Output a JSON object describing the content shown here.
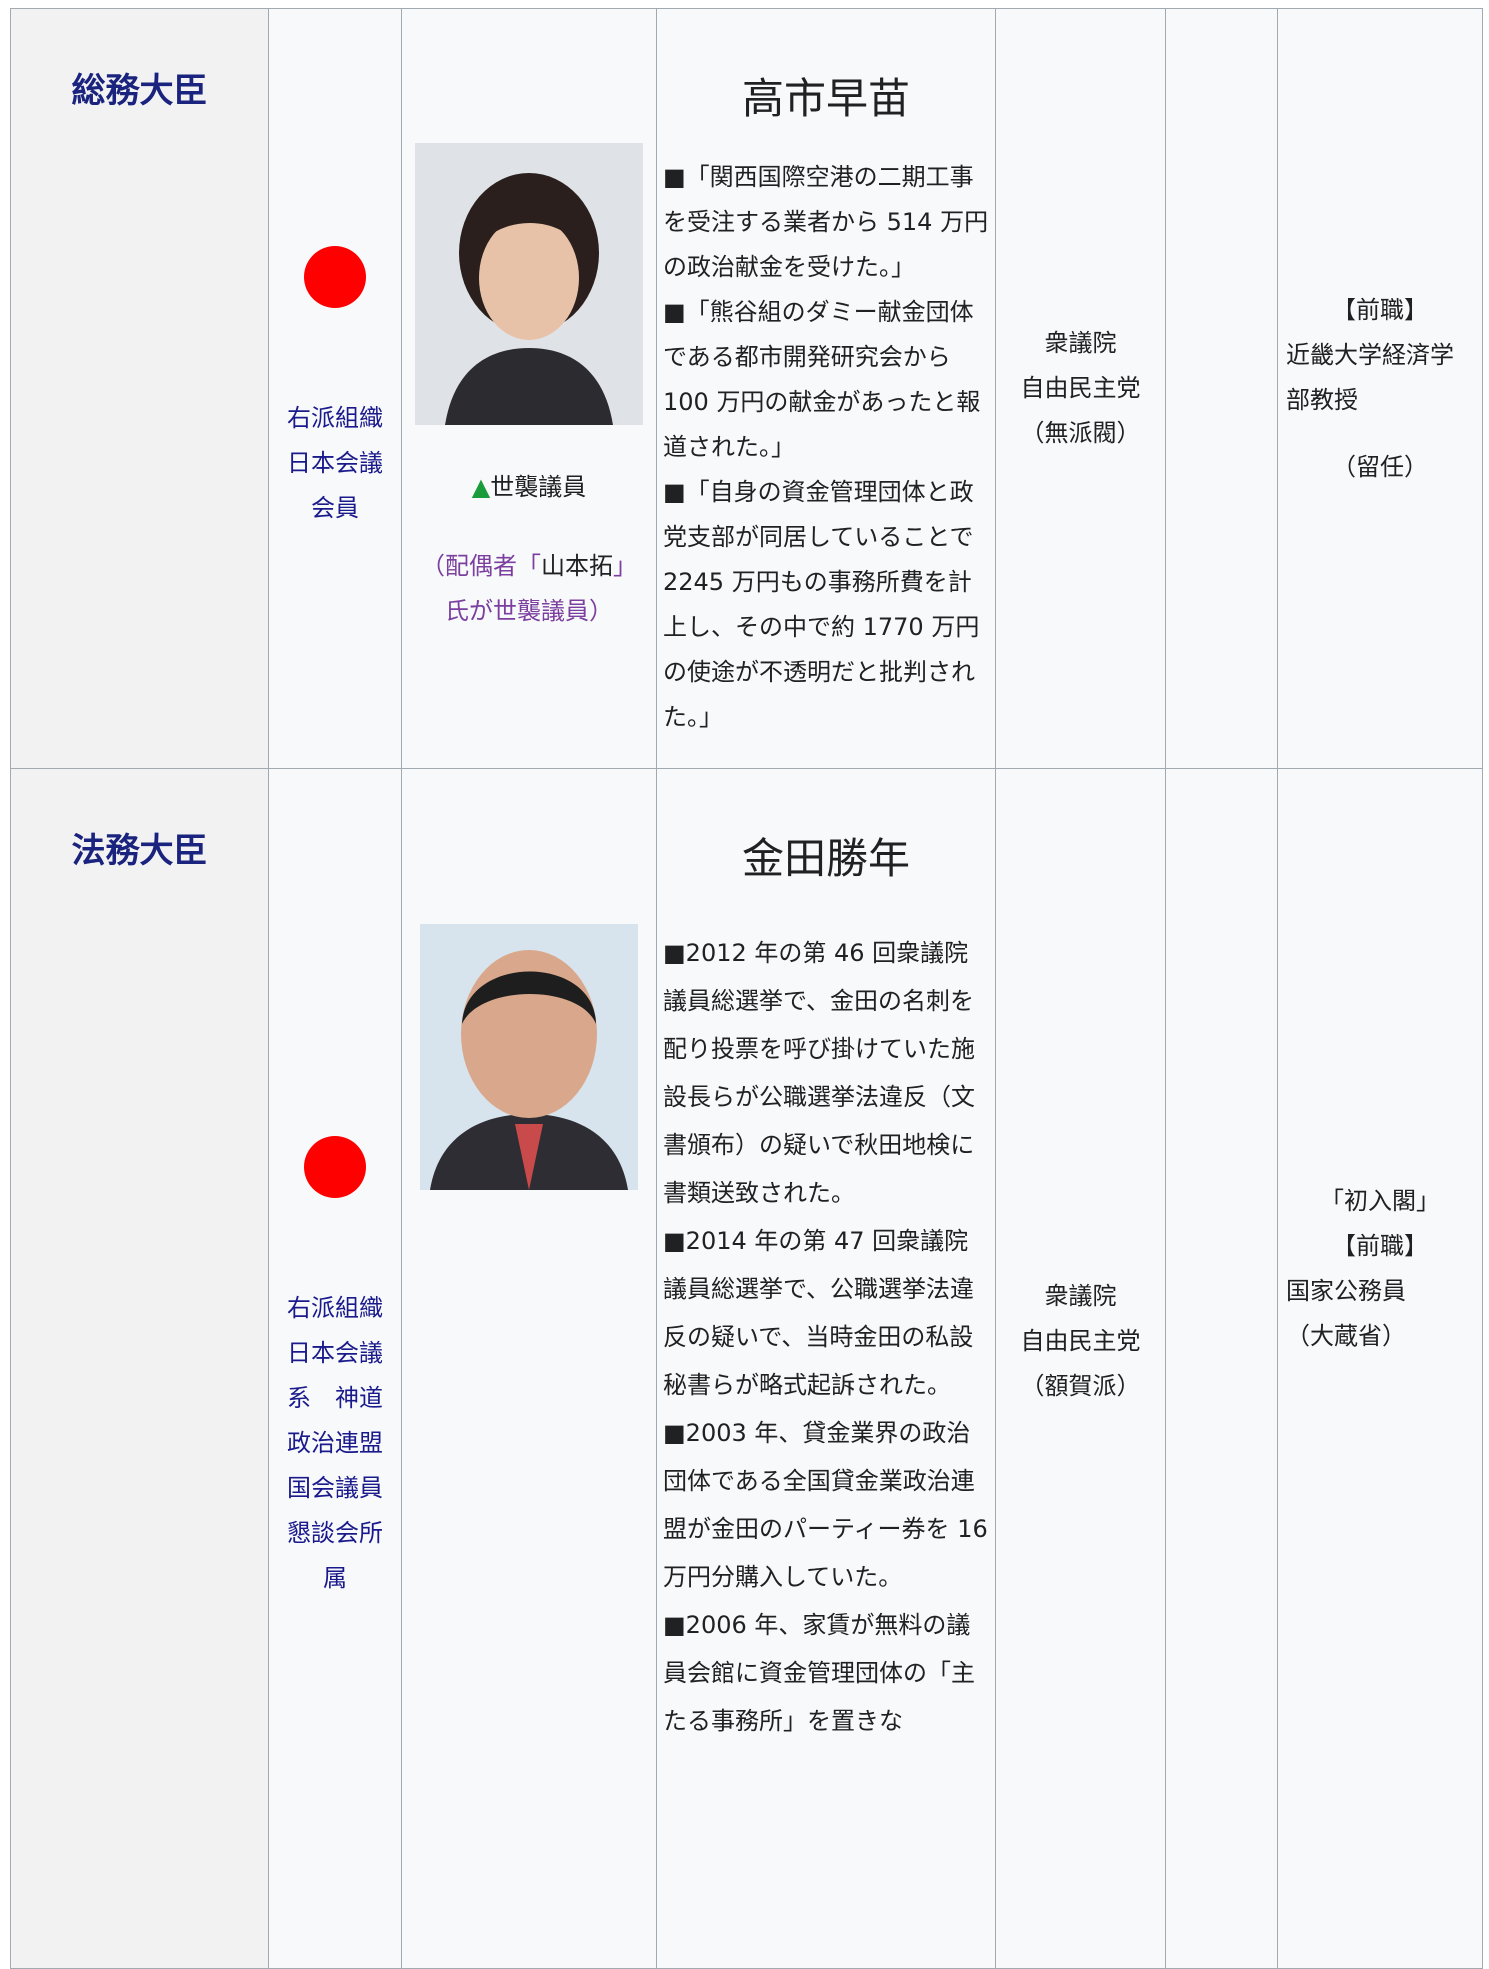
{
  "rows": [
    {
      "post": "総務大臣",
      "affiliation": [
        "右派組織",
        "日本会議",
        "会員"
      ],
      "hereditary": {
        "mark": "▲世襲議員",
        "note_open": "（配偶者「",
        "note_name": "山本拓",
        "note_close": "」氏が世襲議員）"
      },
      "name": "高市早苗",
      "items": [
        "■「関西国際空港の二期工事を受注する業者から 514 万円の政治献金を受けた。」",
        "■「熊谷組のダミー献金団体である都市開発研究会から 100 万円の献金があったと報道された。」",
        "■「自身の資金管理団体と政党支部が同居していることで 2245 万円もの事務所費を計上し、その中で約 1770 万円の使途が不透明だと批判された。」"
      ],
      "house": [
        "衆議院",
        "自由民主党",
        "（無派閥）"
      ],
      "career": [
        "【前職】",
        "近畿大学経済学部教授",
        "（留任）"
      ]
    },
    {
      "post": "法務大臣",
      "affiliation": [
        "右派組織",
        "日本会議",
        "系　神道",
        "政治連盟",
        "国会議員",
        "懇談会所",
        "属"
      ],
      "name": "金田勝年",
      "items": [
        "■2012 年の第 46 回衆議院議員総選挙で、金田の名刺を配り投票を呼び掛けていた施設長らが公職選挙法違反（文書頒布）の疑いで秋田地検に書類送致された。",
        "■2014 年の第 47 回衆議院議員総選挙で、公職選挙法違反の疑いで、当時金田の私設秘書らが略式起訴された。",
        "■2003 年、貸金業界の政治団体である全国貸金業政治連盟が金田のパーティー券を 16 万円分購入していた。",
        "■2006 年、家賃が無料の議員会館に資金管理団体の「主たる事務所」を置きな"
      ],
      "house": [
        "衆議院",
        "自由民主党",
        "（額賀派）"
      ],
      "career": [
        "「初入閣」",
        "【前職】",
        "国家公務員",
        "（大蔵省）"
      ]
    }
  ]
}
